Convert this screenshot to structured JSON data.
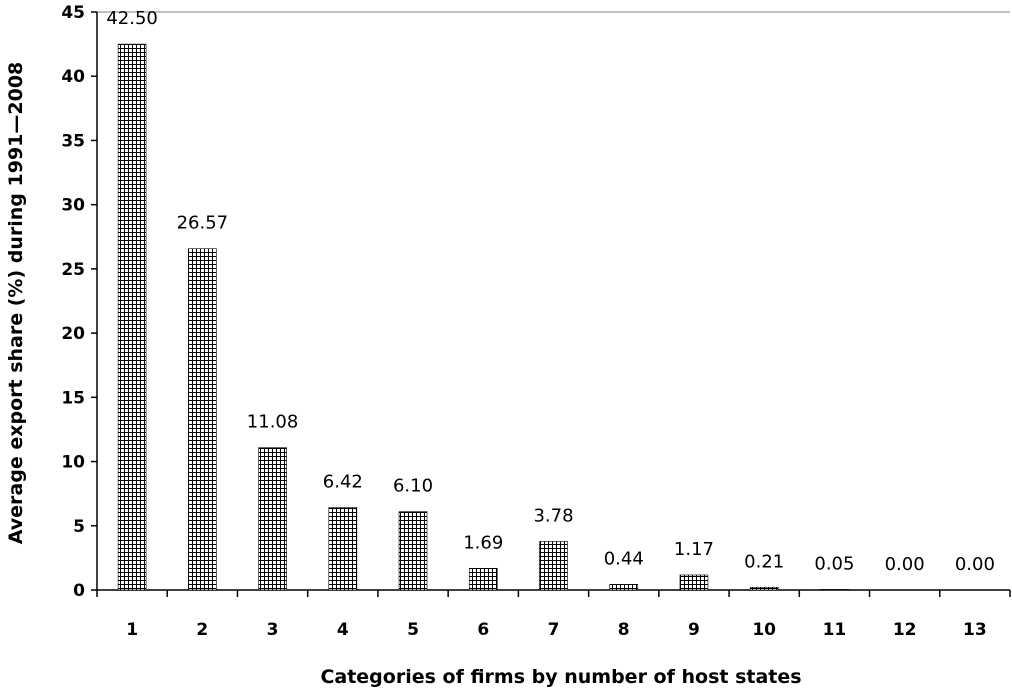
{
  "chart_data": {
    "type": "bar",
    "title": "",
    "xlabel": "Categories of firms by number of host states",
    "ylabel": "Average export share (%) during 1991—2008",
    "categories": [
      "1",
      "2",
      "3",
      "4",
      "5",
      "6",
      "7",
      "8",
      "9",
      "10",
      "11",
      "12",
      "13"
    ],
    "values": [
      42.5,
      26.57,
      11.08,
      6.42,
      6.1,
      1.69,
      3.78,
      0.44,
      1.17,
      0.21,
      0.05,
      0.0,
      0.0
    ],
    "value_labels": [
      "42.50",
      "26.57",
      "11.08",
      "6.42",
      "6.10",
      "1.69",
      "3.78",
      "0.44",
      "1.17",
      "0.21",
      "0.05",
      "0.00",
      "0.00"
    ],
    "ylim": [
      0,
      45
    ],
    "yticks": [
      "0",
      "5",
      "10",
      "15",
      "20",
      "25",
      "30",
      "35",
      "40",
      "45"
    ],
    "bar_fill": "crosshatch",
    "bar_color": "#000000",
    "grid": false,
    "legend": "none"
  }
}
